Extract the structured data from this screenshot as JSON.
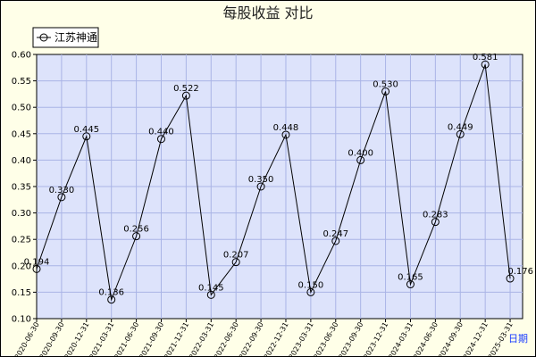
{
  "chart_data": {
    "type": "line",
    "title": "每股收益  对比",
    "unit_label": "日期",
    "ylim": [
      0.1,
      0.6
    ],
    "y_ticks": [
      "0.10",
      "0.15",
      "0.20",
      "0.25",
      "0.30",
      "0.35",
      "0.40",
      "0.45",
      "0.50",
      "0.55",
      "0.60"
    ],
    "legend_position": "top-left",
    "grid": true,
    "colors": {
      "plot_bg": "#dde3fb",
      "outer_bg": "#ffffe8",
      "grid": "#aab4e6",
      "line": "#000000"
    },
    "categories": [
      "2020-06-30",
      "2020-09-30",
      "2020-12-31",
      "2021-03-31",
      "2021-06-30",
      "2021-09-30",
      "2021-12-31",
      "2022-03-31",
      "2022-06-30",
      "2022-09-30",
      "2022-12-31",
      "2023-03-31",
      "2023-06-30",
      "2023-09-30",
      "2023-12-31",
      "2024-03-31",
      "2024-06-30",
      "2024-09-30",
      "2024-12-31",
      "2025-03-31"
    ],
    "series": [
      {
        "name": "江苏神通",
        "values": [
          0.194,
          0.33,
          0.445,
          0.136,
          0.256,
          0.44,
          0.522,
          0.145,
          0.207,
          0.35,
          0.448,
          0.15,
          0.247,
          0.4,
          0.53,
          0.165,
          0.283,
          0.449,
          0.581,
          0.176
        ],
        "labels": [
          "0.194",
          "0.330",
          "0.445",
          "0.136",
          "0.256",
          "0.440",
          "0.522",
          "0.145",
          "0.207",
          "0.350",
          "0.448",
          "0.150",
          "0.247",
          "0.400",
          "0.530",
          "0.165",
          "0.283",
          "0.449",
          "0.581",
          "0.176"
        ]
      }
    ]
  }
}
